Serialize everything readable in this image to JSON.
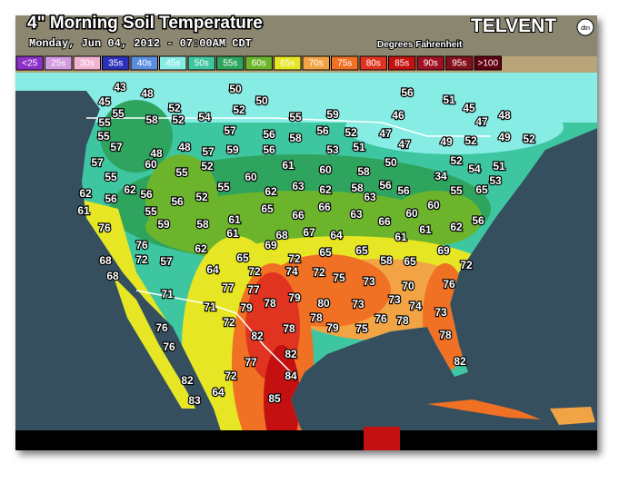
{
  "header": {
    "title": "4\" Morning Soil Temperature",
    "subtitle": "Monday, Jun 04, 2012 - 07:00AM CDT",
    "units": "Degrees Fahrenheit",
    "brand": "TELVENT",
    "brand_badge": "dtn"
  },
  "legend": [
    {
      "label": "<25",
      "color": "#8a2fc8"
    },
    {
      "label": "25s",
      "color": "#d49ae0"
    },
    {
      "label": "30s",
      "color": "#f2b4d4"
    },
    {
      "label": "35s",
      "color": "#2c30b8"
    },
    {
      "label": "40s",
      "color": "#5c8ee0"
    },
    {
      "label": "45s",
      "color": "#86ece4"
    },
    {
      "label": "50s",
      "color": "#3ec6a0"
    },
    {
      "label": "55s",
      "color": "#2ea45e"
    },
    {
      "label": "60s",
      "color": "#6cb42c"
    },
    {
      "label": "65s",
      "color": "#e6e624"
    },
    {
      "label": "70s",
      "color": "#f2a444"
    },
    {
      "label": "75s",
      "color": "#f07024"
    },
    {
      "label": "80s",
      "color": "#e03420"
    },
    {
      "label": "85s",
      "color": "#c41010"
    },
    {
      "label": "90s",
      "color": "#a01024"
    },
    {
      "label": "95s",
      "color": "#84101c"
    },
    {
      "label": ">100",
      "color": "#600010"
    }
  ],
  "temperatures": [
    43,
    48,
    50,
    50,
    56,
    51,
    45,
    48,
    45,
    55,
    52,
    52,
    54,
    55,
    59,
    46,
    47,
    55,
    58,
    52,
    57,
    56,
    58,
    56,
    52,
    47,
    49,
    52,
    49,
    52,
    55,
    57,
    48,
    48,
    57,
    59,
    56,
    53,
    51,
    47,
    57,
    60,
    52,
    61,
    60,
    58,
    50,
    52,
    51,
    54,
    55,
    55,
    60,
    34,
    53,
    62,
    56,
    62,
    56,
    55,
    62,
    63,
    62,
    58,
    56,
    56,
    55,
    65,
    61,
    56,
    52,
    55,
    65,
    66,
    66,
    63,
    60,
    60,
    63,
    76,
    59,
    58,
    61,
    61,
    68,
    67,
    64,
    66,
    61,
    61,
    62,
    56,
    69,
    76,
    62,
    65,
    65,
    69,
    68,
    72,
    57,
    65,
    72,
    58,
    65,
    72,
    68,
    64,
    72,
    74,
    72,
    75,
    73,
    71,
    77,
    77,
    79,
    70,
    76,
    79,
    78,
    80,
    73,
    73,
    74,
    71,
    78,
    73,
    72,
    79,
    75,
    76,
    78,
    76,
    82,
    78,
    78,
    76,
    82,
    77,
    82,
    84,
    82,
    72,
    83,
    64,
    85
  ]
}
